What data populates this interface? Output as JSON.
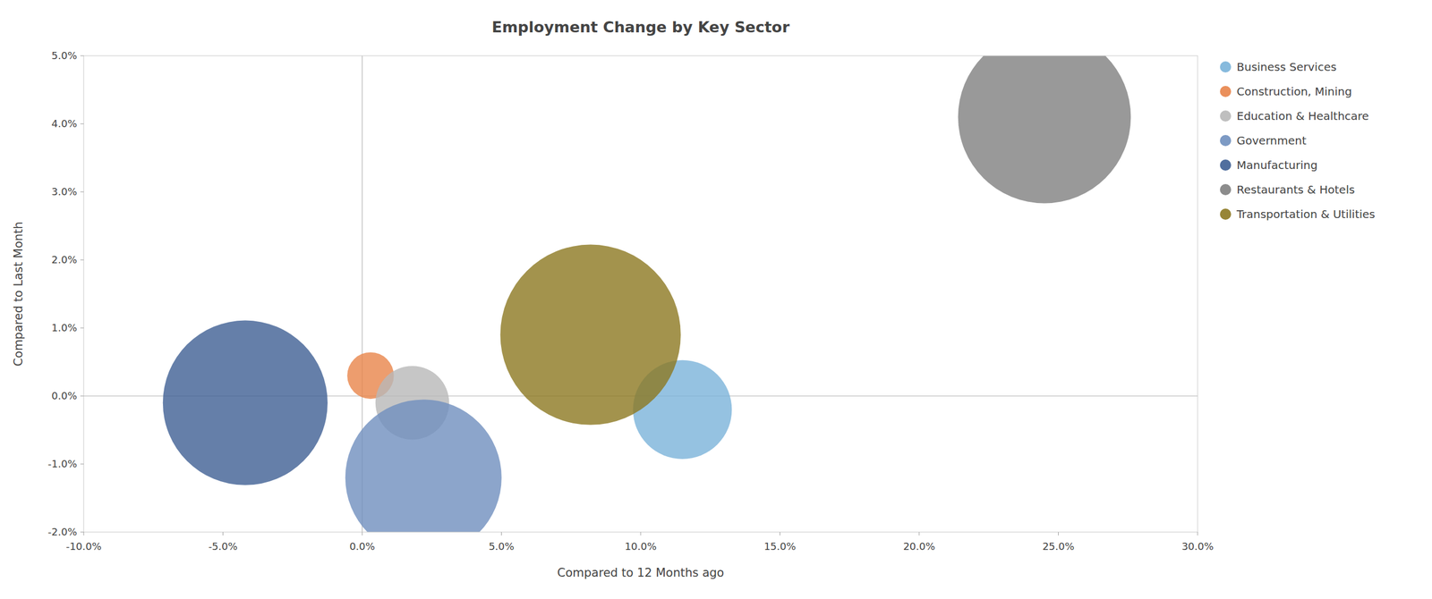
{
  "chart_data": {
    "type": "scatter",
    "title": "Employment Change by Key Sector",
    "x_label": "Compared to 12 Months ago",
    "y_label": "Compared to Last Month",
    "xlim": [
      -0.1,
      0.3
    ],
    "ylim": [
      -0.02,
      0.05
    ],
    "xticks": [
      {
        "value": -0.1,
        "label": "-10.0%"
      },
      {
        "value": -0.05,
        "label": "-5.0%"
      },
      {
        "value": 0.0,
        "label": "0.0%"
      },
      {
        "value": 0.05,
        "label": "5.0%"
      },
      {
        "value": 0.1,
        "label": "10.0%"
      },
      {
        "value": 0.15,
        "label": "15.0%"
      },
      {
        "value": 0.2,
        "label": "20.0%"
      },
      {
        "value": 0.25,
        "label": "25.0%"
      },
      {
        "value": 0.3,
        "label": "30.0%"
      }
    ],
    "yticks": [
      {
        "value": -0.02,
        "label": "-2.0%"
      },
      {
        "value": -0.01,
        "label": "-1.0%"
      },
      {
        "value": 0.0,
        "label": "0.0%"
      },
      {
        "value": 0.01,
        "label": "1.0%"
      },
      {
        "value": 0.02,
        "label": "2.0%"
      },
      {
        "value": 0.03,
        "label": "3.0%"
      },
      {
        "value": 0.04,
        "label": "4.0%"
      },
      {
        "value": 0.05,
        "label": "5.0%"
      }
    ],
    "grid": false,
    "legend": "right",
    "series": [
      {
        "name": "Business Services",
        "color": "#7ab3d9",
        "x": [
          0.115
        ],
        "values": [
          -0.002
        ],
        "sizes": [
          18000
        ]
      },
      {
        "name": "Construction, Mining",
        "color": "#e8844a",
        "x": [
          0.003
        ],
        "values": [
          0.003
        ],
        "sizes": [
          4000
        ]
      },
      {
        "name": "Education & Healthcare",
        "color": "#b8b8b8",
        "x": [
          0.018
        ],
        "values": [
          -0.001
        ],
        "sizes": [
          10000
        ]
      },
      {
        "name": "Government",
        "color": "#6f8fbe",
        "x": [
          0.022
        ],
        "values": [
          -0.012
        ],
        "sizes": [
          45000
        ]
      },
      {
        "name": "Manufacturing",
        "color": "#3e5f94",
        "x": [
          -0.042
        ],
        "values": [
          -0.001
        ],
        "sizes": [
          50000
        ]
      },
      {
        "name": "Restaurants & Hotels",
        "color": "#7f7f7f",
        "x": [
          0.245
        ],
        "values": [
          0.041
        ],
        "sizes": [
          55000
        ]
      },
      {
        "name": "Transportation & Utilities",
        "color": "#8c7820",
        "x": [
          0.082
        ],
        "values": [
          0.009
        ],
        "sizes": [
          60000
        ]
      }
    ]
  }
}
